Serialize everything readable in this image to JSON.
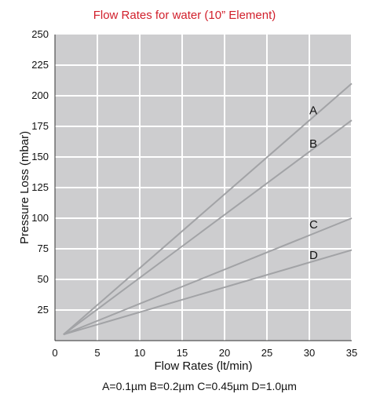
{
  "chart_data": {
    "type": "line",
    "title": "Flow Rates for water (10” Element)",
    "xlabel": "Flow Rates (lt/min)",
    "ylabel": "Pressure Loss (mbar)",
    "footnote": "A=0.1µm B=0.2µm C=0.45µm D=1.0µm",
    "xlim": [
      0,
      35
    ],
    "ylim": [
      0,
      250
    ],
    "x_ticks": [
      0,
      5,
      10,
      15,
      20,
      25,
      30,
      35
    ],
    "y_ticks": [
      25,
      50,
      75,
      100,
      125,
      150,
      175,
      200,
      225,
      250
    ],
    "grid": true,
    "series": [
      {
        "name": "A",
        "x": [
          1,
          35
        ],
        "y": [
          5,
          210
        ],
        "label_at": [
          30,
          188
        ]
      },
      {
        "name": "B",
        "x": [
          1,
          35
        ],
        "y": [
          5,
          180
        ],
        "label_at": [
          30,
          161
        ]
      },
      {
        "name": "C",
        "x": [
          1,
          35
        ],
        "y": [
          5,
          100
        ],
        "label_at": [
          30,
          95
        ]
      },
      {
        "name": "D",
        "x": [
          1,
          35
        ],
        "y": [
          5,
          74
        ],
        "label_at": [
          30,
          70
        ]
      }
    ],
    "colors": {
      "title": "#d11f2b",
      "plot_background": "#cdcdcf",
      "grid": "#ffffff",
      "series_line": "#a2a3a6",
      "axis": "#333333"
    }
  }
}
